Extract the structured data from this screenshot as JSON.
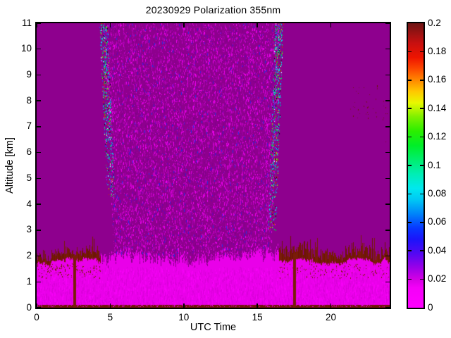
{
  "title": "20230929 Polarization 355nm",
  "axes": {
    "xlabel": "UTC Time",
    "ylabel": "Altitude [km]",
    "x_range": [
      0,
      24
    ],
    "y_range": [
      0,
      11
    ],
    "x_ticks": [
      0,
      5,
      10,
      15,
      20
    ],
    "y_ticks": [
      0,
      1,
      2,
      3,
      4,
      5,
      6,
      7,
      8,
      9,
      10,
      11
    ]
  },
  "colorbar": {
    "range": [
      0,
      0.2
    ],
    "ticks": [
      "0",
      "0.02",
      "0.04",
      "0.06",
      "0.08",
      "0.1",
      "0.12",
      "0.14",
      "0.16",
      "0.18",
      "0.2"
    ],
    "gradient_stops": [
      [
        0.0,
        "#FF00FF"
      ],
      [
        0.07,
        "#F400F8"
      ],
      [
        0.1,
        "#D400E4"
      ],
      [
        0.14,
        "#9C00E8"
      ],
      [
        0.19,
        "#5408F2"
      ],
      [
        0.24,
        "#1C14FA"
      ],
      [
        0.28,
        "#0838FF"
      ],
      [
        0.33,
        "#0084FA"
      ],
      [
        0.38,
        "#00C8F4"
      ],
      [
        0.42,
        "#00E8EE"
      ],
      [
        0.47,
        "#00EEB4"
      ],
      [
        0.52,
        "#00EE6E"
      ],
      [
        0.57,
        "#00EE28"
      ],
      [
        0.62,
        "#2AEE00"
      ],
      [
        0.67,
        "#7CF000"
      ],
      [
        0.72,
        "#E8F800"
      ],
      [
        0.76,
        "#FFC800"
      ],
      [
        0.8,
        "#FF8800"
      ],
      [
        0.84,
        "#FC4800"
      ],
      [
        0.88,
        "#EE1400"
      ],
      [
        0.93,
        "#C81010"
      ],
      [
        1.0,
        "#6E1414"
      ]
    ]
  },
  "chart_data": {
    "type": "heatmap",
    "title": "20230929 Polarization 355nm",
    "xlabel": "UTC Time",
    "ylabel": "Altitude [km]",
    "x_range": [
      0,
      24
    ],
    "y_range_km": [
      0,
      11
    ],
    "value_range": [
      0,
      0.2
    ],
    "quantity": "polarization (depolarization ratio) at 355 nm",
    "colors": {
      "background": "#8E008E",
      "bl_bright": "#E900E9",
      "bl_texture_dark": "#DB00DB",
      "bl_texture_light": "#F600F6",
      "dark_red": "#7A1C08",
      "dark_red_deep": "#6E1606"
    },
    "noise_palette": [
      {
        "c": "#81008A",
        "w": 0.2
      },
      {
        "c": "#A500AC",
        "w": 0.22
      },
      {
        "c": "#BE00C2",
        "w": 0.2
      },
      {
        "c": "#D800D8",
        "w": 0.16
      },
      {
        "c": "#EC00EC",
        "w": 0.12
      },
      {
        "c": "#6E00B4",
        "w": 0.05
      },
      {
        "c": "#4018D0",
        "w": 0.03
      },
      {
        "c": "#2A30E0",
        "w": 0.02
      }
    ],
    "edge_palette": [
      {
        "c": "#00DCE8",
        "w": 0.26
      },
      {
        "c": "#00D24A",
        "w": 0.18
      },
      {
        "c": "#2A48E8",
        "w": 0.2
      },
      {
        "c": "#C83208",
        "w": 0.1
      },
      {
        "c": "#96E000",
        "w": 0.08
      },
      {
        "c": "#16082A",
        "w": 0.1
      },
      {
        "c": "#DCDCFF",
        "w": 0.04
      },
      {
        "c": "#EC00EC",
        "w": 0.04
      }
    ],
    "features": [
      {
        "id": "clear_air_background",
        "kind": "fill",
        "x_utc": [
          0,
          24
        ],
        "y_km": [
          2,
          11
        ],
        "value_typ": 0.01
      },
      {
        "id": "daylight_noise",
        "kind": "speckle",
        "x_utc": [
          4.55,
          16.5
        ],
        "y_km": [
          2.0,
          11.0
        ],
        "value_typ": "0-0.06 speckle"
      },
      {
        "id": "noise_edge_left",
        "kind": "edge",
        "side": "left",
        "y_km": [
          4.3,
          11.0
        ],
        "value_typ": "0-0.2 speckle"
      },
      {
        "id": "noise_edge_right",
        "kind": "edge",
        "side": "right",
        "y_km": [
          3.0,
          11.0
        ],
        "value_typ": "0-0.2 speckle"
      },
      {
        "id": "boundary_layer",
        "kind": "layer",
        "x_utc": [
          0,
          24
        ],
        "y_km": [
          0.07,
          1.78
        ],
        "value_typ": 0.004
      },
      {
        "id": "bl_top_band_left",
        "kind": "band",
        "x_utc": [
          0,
          4.35
        ],
        "y_km": [
          1.7,
          2.0
        ],
        "value_typ": 0.2
      },
      {
        "id": "bl_top_band_right",
        "kind": "band",
        "x_utc": [
          16.5,
          24
        ],
        "y_km": [
          1.7,
          2.15
        ],
        "value_typ": 0.2
      },
      {
        "id": "surface_line",
        "kind": "strip",
        "x_utc": [
          0,
          24
        ],
        "y_km": [
          0,
          0.1
        ],
        "value_typ": 0.2
      },
      {
        "id": "gap_streak_1",
        "kind": "vline",
        "x_utc": 2.6,
        "y_km": [
          0,
          2.0
        ],
        "value_typ": 0.2
      },
      {
        "id": "gap_streak_2",
        "kind": "vline",
        "x_utc": 17.55,
        "y_km": [
          0,
          2.05
        ],
        "value_typ": 0.2
      },
      {
        "id": "cirrus_specks",
        "kind": "specks",
        "x_utc": [
          21.3,
          23.2
        ],
        "y_km": [
          7.3,
          8.6
        ],
        "value_typ": 0.2
      },
      {
        "id": "edge_specks",
        "kind": "specks",
        "x_utc": [
          23.5,
          23.95
        ],
        "y_km": [
          6.2,
          8.0
        ],
        "value_typ": 0.2
      }
    ]
  }
}
